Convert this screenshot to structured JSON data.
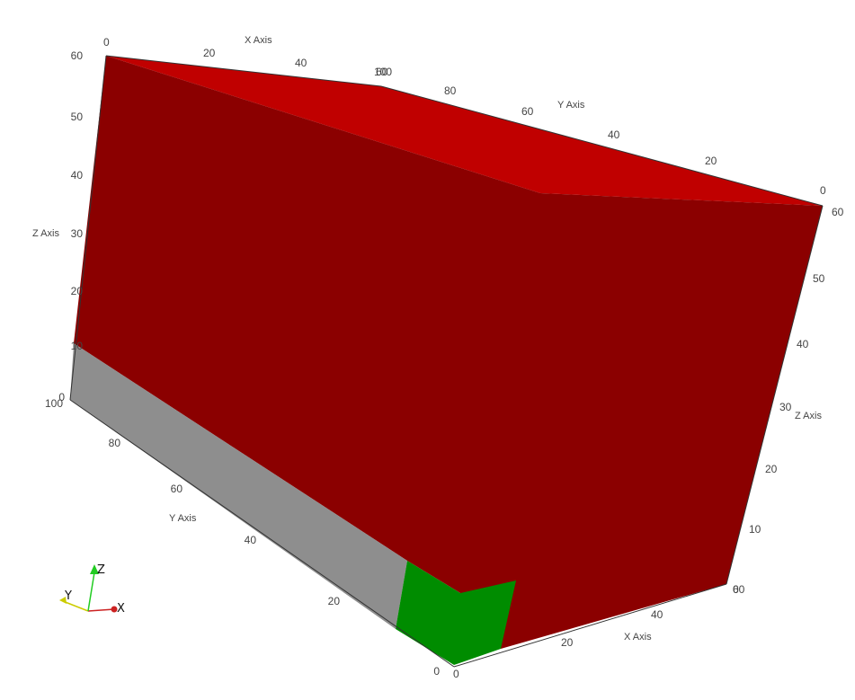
{
  "colors": {
    "red_dark": "#8b0000",
    "red_top": "#c00000",
    "gray_side": "#8e8e8e",
    "green": "#008c00",
    "axis_x": "#cc2222",
    "axis_y": "#cccc00",
    "axis_z": "#22cc22"
  },
  "axes": {
    "top_x": {
      "title": "X Axis",
      "ticks": [
        "0",
        "20",
        "40",
        "60"
      ]
    },
    "top_y": {
      "title": "Y Axis",
      "ticks": [
        "100",
        "80",
        "60",
        "40",
        "20",
        "0"
      ]
    },
    "left_z": {
      "title": "Z Axis",
      "ticks": [
        "60",
        "50",
        "40",
        "30",
        "20",
        "10",
        "0"
      ]
    },
    "left_y": {
      "title": "Y Axis",
      "ticks": [
        "100",
        "80",
        "60",
        "40",
        "20",
        "0"
      ]
    },
    "bottom_x": {
      "title": "X Axis",
      "ticks": [
        "0",
        "20",
        "40",
        "60"
      ]
    },
    "right_z": {
      "title": "Z Axis",
      "ticks": [
        "60",
        "50",
        "40",
        "30",
        "20",
        "10",
        "0"
      ]
    }
  },
  "orientation_triad": {
    "x": "X",
    "y": "Y",
    "z": "Z"
  }
}
